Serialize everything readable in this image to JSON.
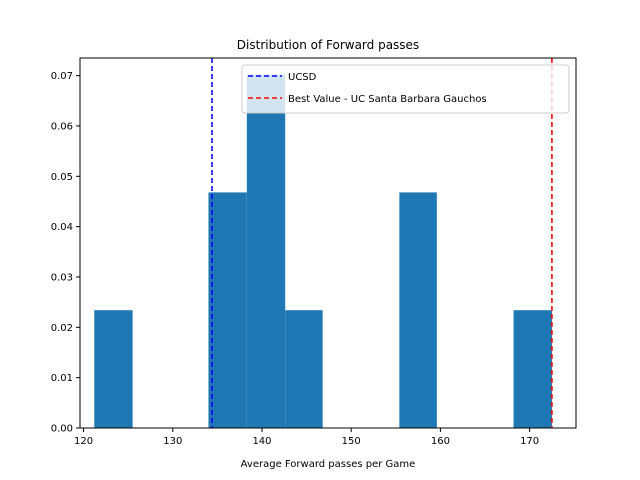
{
  "chart_data": {
    "type": "bar",
    "title": "Distribution of Forward passes",
    "xlabel": "Average Forward passes per Game",
    "ylabel": "",
    "xlim": [
      119.6,
      175.2
    ],
    "ylim": [
      0,
      0.0735
    ],
    "x_ticks": [
      120,
      130,
      140,
      150,
      160,
      170
    ],
    "y_ticks": [
      0.0,
      0.01,
      0.02,
      0.03,
      0.04,
      0.05,
      0.06,
      0.07
    ],
    "bar_color": "#1f77b4",
    "bins": [
      {
        "x0": 121.2,
        "x1": 125.5,
        "value": 0.0234
      },
      {
        "x0": 125.5,
        "x1": 129.8,
        "value": 0
      },
      {
        "x0": 129.8,
        "x1": 134.0,
        "value": 0
      },
      {
        "x0": 134.0,
        "x1": 138.3,
        "value": 0.0468
      },
      {
        "x0": 138.3,
        "x1": 142.6,
        "value": 0.0702
      },
      {
        "x0": 142.6,
        "x1": 146.8,
        "value": 0.0234
      },
      {
        "x0": 146.8,
        "x1": 151.1,
        "value": 0
      },
      {
        "x0": 151.1,
        "x1": 155.4,
        "value": 0
      },
      {
        "x0": 155.4,
        "x1": 159.6,
        "value": 0.0468
      },
      {
        "x0": 159.6,
        "x1": 163.9,
        "value": 0
      },
      {
        "x0": 163.9,
        "x1": 168.2,
        "value": 0
      },
      {
        "x0": 168.2,
        "x1": 172.5,
        "value": 0.0234
      }
    ],
    "reference_lines": [
      {
        "name": "UCSD",
        "x": 134.4,
        "color": "#0000ff"
      },
      {
        "name": "Best Value - UC Santa Barbara Gauchos",
        "x": 172.5,
        "color": "#ff0000"
      }
    ],
    "legend": {
      "position": "top-right"
    },
    "grid": false
  }
}
